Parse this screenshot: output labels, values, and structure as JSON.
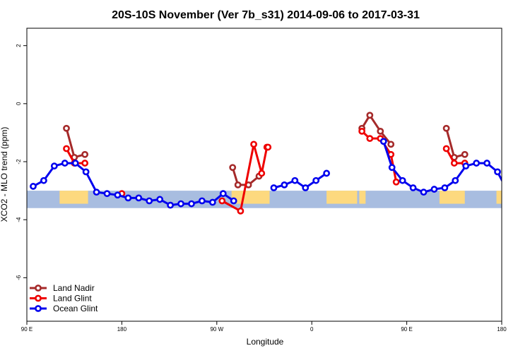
{
  "chart_data": {
    "type": "line",
    "title": "20S-10S November (Ver 7b_s31)   2014-09-06 to 2017-03-31",
    "xlabel": "Longitude",
    "ylabel": "XCO2 - MLO trend (ppm)",
    "xlim": [
      90,
      540
    ],
    "ylim": [
      -7.5,
      2.6
    ],
    "x_ticks": [
      {
        "value": 90,
        "label": "90 E"
      },
      {
        "value": 180,
        "label": "180"
      },
      {
        "value": 270,
        "label": "90 W"
      },
      {
        "value": 360,
        "label": "0"
      },
      {
        "value": 450,
        "label": "90 E"
      },
      {
        "value": 540,
        "label": "180"
      }
    ],
    "y_ticks": [
      {
        "value": 2,
        "label": "2"
      },
      {
        "value": 0,
        "label": "0"
      },
      {
        "value": -2,
        "label": "-2"
      },
      {
        "value": -4,
        "label": "-4"
      },
      {
        "value": -6,
        "label": "-6"
      }
    ],
    "land_strip": {
      "y_range": [
        -3.6,
        -3.0
      ],
      "ocean_color": "#a8bde0",
      "land_color": "#fdd97f",
      "land_segments": [
        [
          121,
          148
        ],
        [
          284,
          320
        ],
        [
          374,
          403
        ],
        [
          405,
          411
        ],
        [
          481,
          505
        ],
        [
          535,
          540
        ]
      ]
    },
    "legend": {
      "position": "bottom-left",
      "entries": [
        {
          "name": "Land Nadir",
          "color": "#a52a2a"
        },
        {
          "name": "Land Glint",
          "color": "#ee0000"
        },
        {
          "name": "Ocean Glint",
          "color": "#0000ee"
        }
      ]
    },
    "series": [
      {
        "name": "Land Nadir",
        "color": "#a52a2a",
        "segments": [
          [
            [
              127.5,
              -0.85
            ],
            [
              135,
              -1.85
            ],
            [
              145,
              -1.75
            ]
          ],
          [
            [
              285,
              -2.2
            ],
            [
              290,
              -2.8
            ],
            [
              300,
              -2.8
            ],
            [
              310,
              -2.5
            ]
          ],
          [
            [
              407.5,
              -0.85
            ],
            [
              415,
              -0.4
            ],
            [
              425,
              -0.95
            ],
            [
              435,
              -1.4
            ]
          ],
          [
            [
              487.5,
              -0.85
            ],
            [
              495,
              -1.85
            ],
            [
              505,
              -1.75
            ]
          ]
        ]
      },
      {
        "name": "Land Glint",
        "color": "#ee0000",
        "segments": [
          [
            [
              127.5,
              -1.55
            ],
            [
              135,
              -2.05
            ],
            [
              145,
              -2.05
            ]
          ],
          [
            [
              180,
              -3.1
            ]
          ],
          [
            [
              275,
              -3.35
            ],
            [
              292.5,
              -3.7
            ],
            [
              305,
              -1.4
            ],
            [
              312.5,
              -2.4
            ],
            [
              317.5,
              -1.5
            ],
            [
              318.5,
              -1.5
            ]
          ],
          [
            [
              407.5,
              -0.95
            ],
            [
              415,
              -1.2
            ],
            [
              425,
              -1.2
            ],
            [
              435,
              -1.75
            ],
            [
              440,
              -2.7
            ]
          ],
          [
            [
              487.5,
              -1.55
            ],
            [
              495,
              -2.05
            ],
            [
              505,
              -2.05
            ]
          ]
        ]
      },
      {
        "name": "Ocean Glint",
        "color": "#0000ee",
        "segments": [
          [
            [
              96,
              -2.85
            ],
            [
              106,
              -2.65
            ],
            [
              116,
              -2.15
            ],
            [
              126,
              -2.05
            ],
            [
              136,
              -2.05
            ],
            [
              146,
              -2.35
            ],
            [
              156,
              -3.05
            ],
            [
              166,
              -3.1
            ],
            [
              176,
              -3.15
            ],
            [
              186,
              -3.25
            ],
            [
              196,
              -3.25
            ],
            [
              206,
              -3.35
            ],
            [
              216,
              -3.3
            ],
            [
              226,
              -3.5
            ],
            [
              236,
              -3.45
            ],
            [
              246,
              -3.45
            ],
            [
              256,
              -3.35
            ],
            [
              266,
              -3.4
            ],
            [
              276,
              -3.1
            ],
            [
              286,
              -3.35
            ]
          ],
          [
            [
              324,
              -2.9
            ],
            [
              334,
              -2.8
            ],
            [
              344,
              -2.65
            ],
            [
              354,
              -2.9
            ],
            [
              364,
              -2.65
            ],
            [
              374,
              -2.4
            ]
          ],
          [
            [
              428,
              -1.3
            ],
            [
              436,
              -2.2
            ],
            [
              446,
              -2.65
            ],
            [
              456,
              -2.9
            ],
            [
              466,
              -3.05
            ],
            [
              476,
              -2.95
            ],
            [
              486,
              -2.9
            ],
            [
              496,
              -2.65
            ],
            [
              506,
              -2.15
            ],
            [
              516,
              -2.05
            ],
            [
              526,
              -2.05
            ],
            [
              536,
              -2.35
            ],
            [
              546,
              -3.05
            ],
            [
              556,
              -3.1
            ],
            [
              566,
              -3.15
            ]
          ]
        ]
      }
    ]
  }
}
